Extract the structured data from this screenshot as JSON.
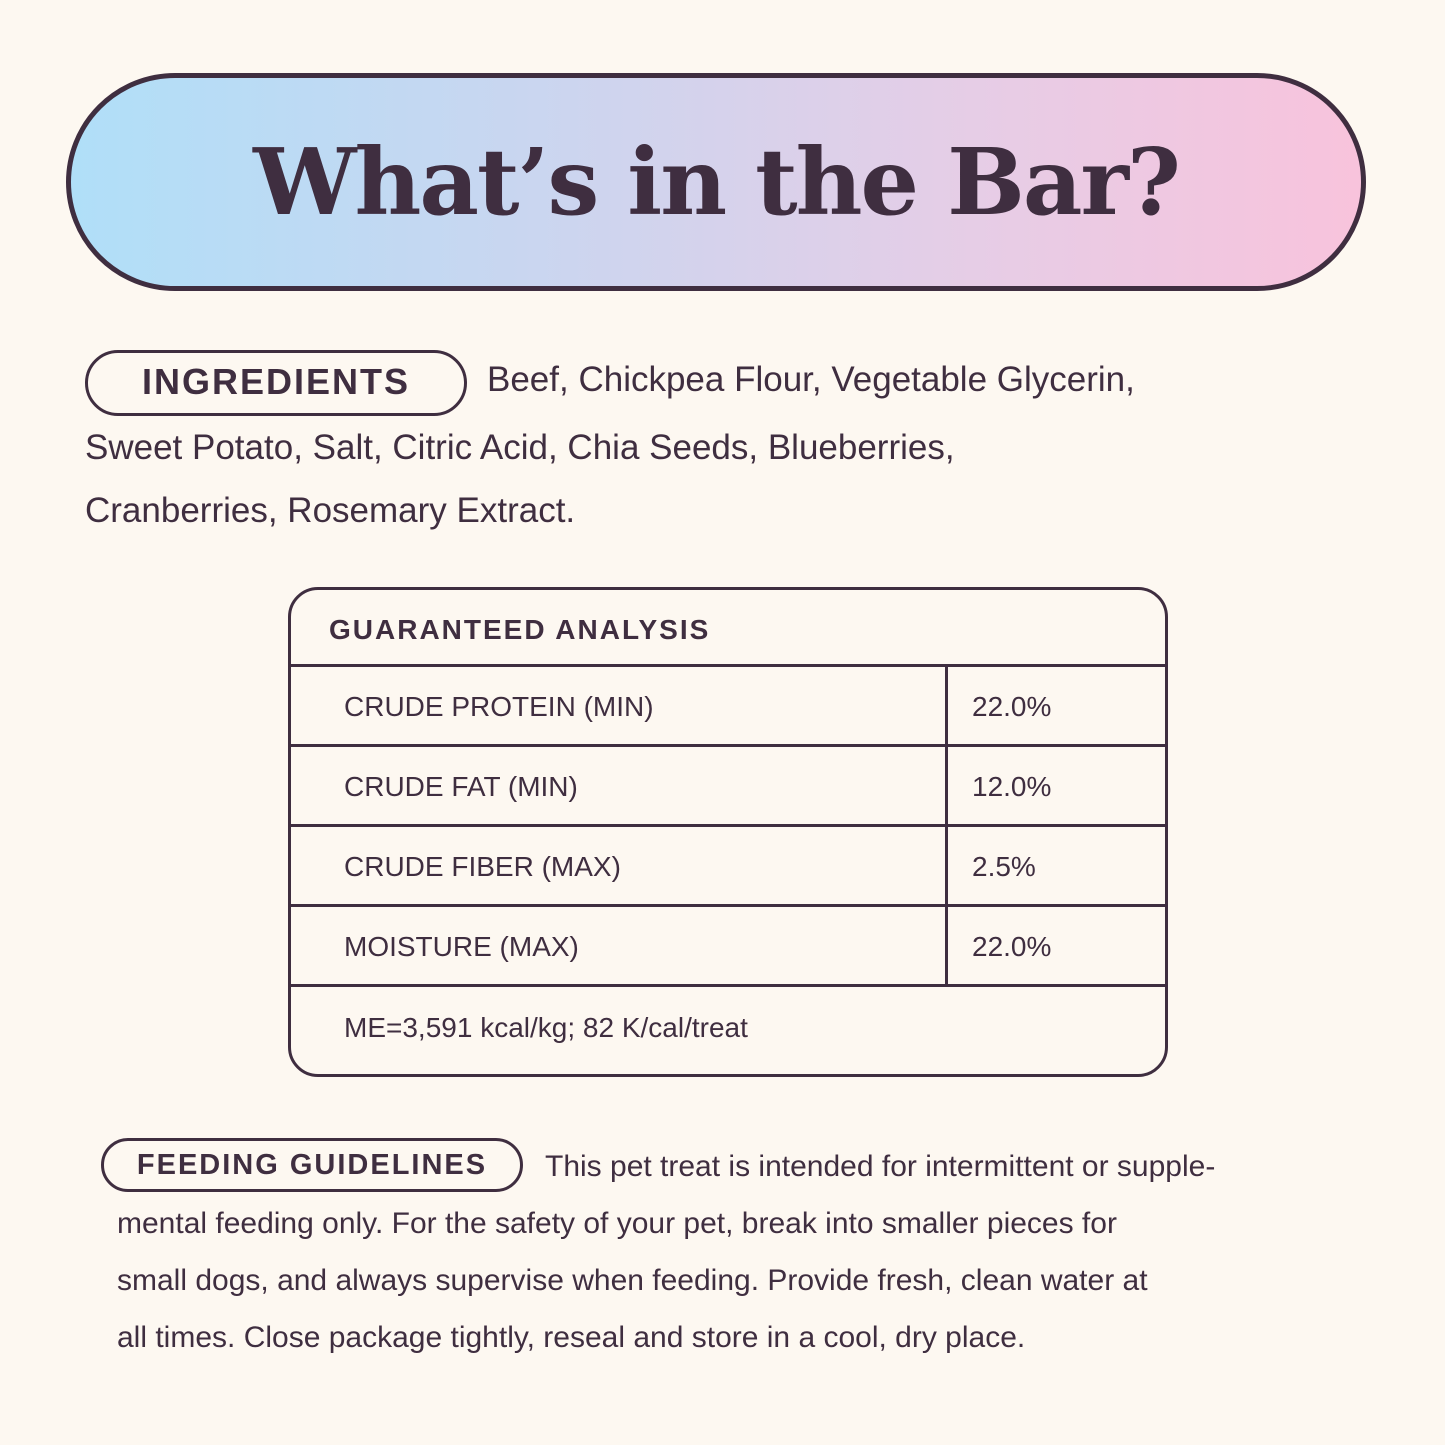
{
  "title": "What’s in the Bar?",
  "colors": {
    "text": "#3f2e40",
    "background": "#fdf8f1",
    "gradient_start": "#b0dff8",
    "gradient_end": "#f8c3dc"
  },
  "ingredients": {
    "label": "INGREDIENTS",
    "lines": [
      "Beef, Chickpea Flour, Vegetable Glycerin,",
      "Sweet Potato, Salt, Citric Acid, Chia Seeds, Blueberries,",
      "Cranberries, Rosemary Extract."
    ]
  },
  "analysis": {
    "header": "GUARANTEED ANALYSIS",
    "rows": [
      {
        "label": "CRUDE PROTEIN (MIN)",
        "value": "22.0%"
      },
      {
        "label": "CRUDE FAT (MIN)",
        "value": "12.0%"
      },
      {
        "label": "CRUDE FIBER (MAX)",
        "value": "2.5%"
      },
      {
        "label": "MOISTURE (MAX)",
        "value": "22.0%"
      }
    ],
    "footer": "ME=3,591 kcal/kg; 82 K/cal/treat"
  },
  "feeding": {
    "label": "FEEDING GUIDELINES",
    "lines": [
      "This pet treat is intended for intermittent or supple-",
      "mental feeding only. For the safety of your pet, break into smaller pieces for",
      "small dogs, and always supervise when feeding. Provide fresh, clean water at",
      "all times. Close package tightly, reseal and store in a cool, dry place."
    ]
  }
}
